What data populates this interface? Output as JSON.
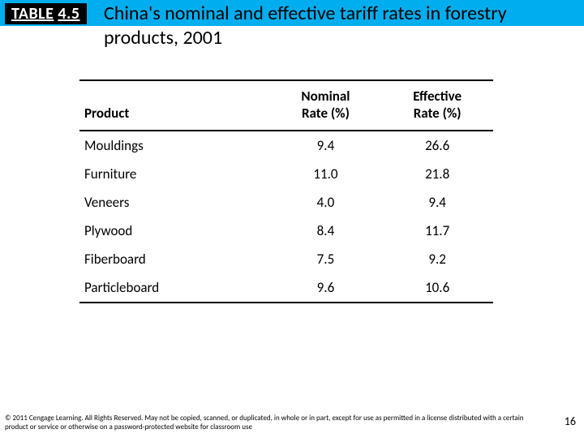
{
  "header": {
    "badge_prefix": "TABLE",
    "badge_number": "4.5",
    "title": "China's nominal and effective tariff rates in forestry products, 2001"
  },
  "columns": {
    "product": "Product",
    "nominal_line1": "Nominal",
    "nominal_line2": "Rate (%)",
    "effective_line1": "Effective",
    "effective_line2": "Rate (%)"
  },
  "rows": [
    {
      "product": "Mouldings",
      "nominal": "9.4",
      "effective": "26.6"
    },
    {
      "product": "Furniture",
      "nominal": "11.0",
      "effective": "21.8"
    },
    {
      "product": "Veneers",
      "nominal": "4.0",
      "effective": "9.4"
    },
    {
      "product": "Plywood",
      "nominal": "8.4",
      "effective": "11.7"
    },
    {
      "product": "Fiberboard",
      "nominal": "7.5",
      "effective": "9.2"
    },
    {
      "product": "Particleboard",
      "nominal": "9.6",
      "effective": "10.6"
    }
  ],
  "footer": {
    "copyright": "© 2011 Cengage Learning. All Rights Reserved. May not be copied, scanned, or duplicated, in whole or in part, except for use as permitted in a license distributed with a certain product or service or otherwise on a password-protected website for classroom use",
    "page": "16"
  },
  "style": {
    "accent_bar_color": "#00aeef",
    "badge_bg": "#000000",
    "badge_fg": "#ffffff",
    "font": "Calibri"
  }
}
